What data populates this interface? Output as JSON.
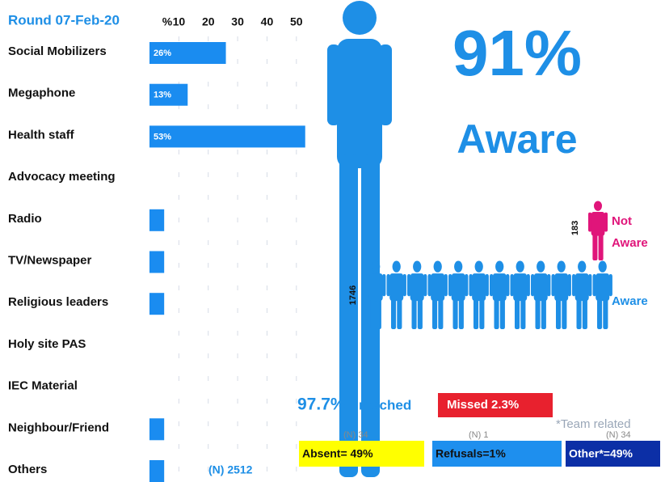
{
  "chart_data": {
    "type": "bar",
    "orientation": "horizontal",
    "title": "Round 07-Feb-20",
    "axis_label": "%",
    "categories": [
      "Social Mobilizers",
      "Megaphone",
      "Health  staff",
      "Advocacy meeting",
      "Radio",
      "TV/Newspaper",
      "Religious leaders",
      "Holy site PAS",
      "IEC Material",
      "Neighbour/Friend",
      "Others"
    ],
    "values": [
      26,
      13,
      53,
      0,
      5,
      5,
      5,
      0,
      0,
      5,
      5
    ],
    "value_labels": [
      "26%",
      "13%",
      "53%",
      null,
      null,
      null,
      null,
      null,
      null,
      null,
      null
    ],
    "color": "#1a8cf0",
    "xlim": [
      0,
      55
    ],
    "xticks": [
      10,
      20,
      30,
      40,
      50
    ],
    "grid": true,
    "note": "(N) 2512"
  },
  "awareness": {
    "percent": "91%",
    "label": "Aware",
    "not_aware_count": "183",
    "not_aware_label": [
      "Not",
      "Aware"
    ],
    "aware_count": "1746",
    "aware_label": "Aware"
  },
  "coverage": {
    "reached_percent": "97.7%",
    "reached_label": "reached",
    "missed": "Missed  2.3%",
    "team_related": "*Team related",
    "breakdown": [
      {
        "n": "(N)  34",
        "label": "Absent=  49%"
      },
      {
        "n": "(N)  1",
        "label": "Refusals=1%"
      },
      {
        "n": "(N)  34",
        "label": "Other*=49%"
      }
    ]
  }
}
